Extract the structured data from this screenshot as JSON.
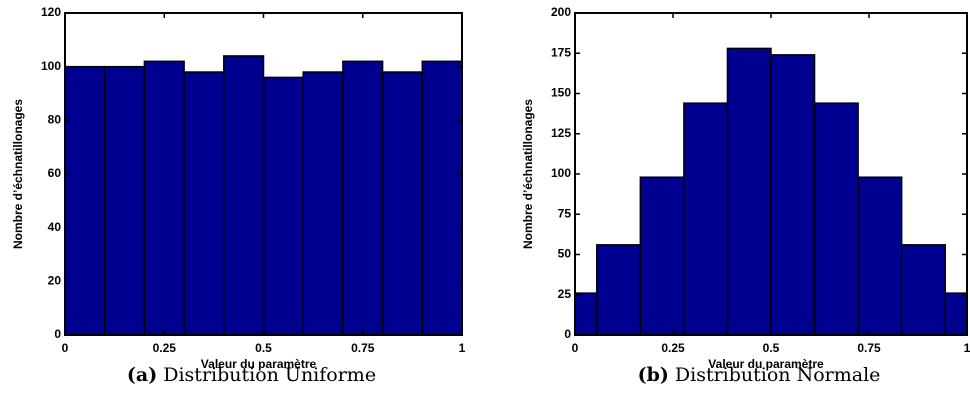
{
  "chart_data": [
    {
      "type": "histogram",
      "caption_label": "(a)",
      "caption": "Distribution Uniforme",
      "xlabel": "Valeur du paramètre",
      "ylabel": "Nombre d’échnatillonages",
      "bins": [
        0,
        0.1,
        0.2,
        0.3,
        0.4,
        0.5,
        0.6,
        0.7,
        0.8,
        0.9,
        1
      ],
      "values": [
        100,
        100,
        102,
        98,
        104,
        96,
        98,
        102,
        98,
        102
      ],
      "color": "#000090",
      "xlim": [
        0,
        1
      ],
      "xticks": [
        0,
        0.25,
        0.5,
        0.75,
        1
      ],
      "ylim": [
        0,
        120
      ],
      "yticks": [
        0,
        20,
        40,
        60,
        80,
        100,
        120
      ]
    },
    {
      "type": "histogram",
      "caption_label": "(b)",
      "caption": "Distribution Normale",
      "xlabel": "Valeur du paramètre",
      "ylabel": "Nombre d’échnatillonages",
      "bins": [
        -0.0556,
        0.0556,
        0.1667,
        0.2778,
        0.3889,
        0.5,
        0.6111,
        0.7222,
        0.8333,
        0.9444,
        1.0556
      ],
      "values": [
        26,
        56,
        98,
        144,
        178,
        174,
        144,
        98,
        56,
        26
      ],
      "color": "#000090",
      "xlim": [
        0,
        1
      ],
      "xticks": [
        0,
        0.25,
        0.5,
        0.75,
        1
      ],
      "ylim": [
        0,
        200
      ],
      "yticks": [
        0,
        25,
        50,
        75,
        100,
        125,
        150,
        175,
        200
      ]
    }
  ]
}
